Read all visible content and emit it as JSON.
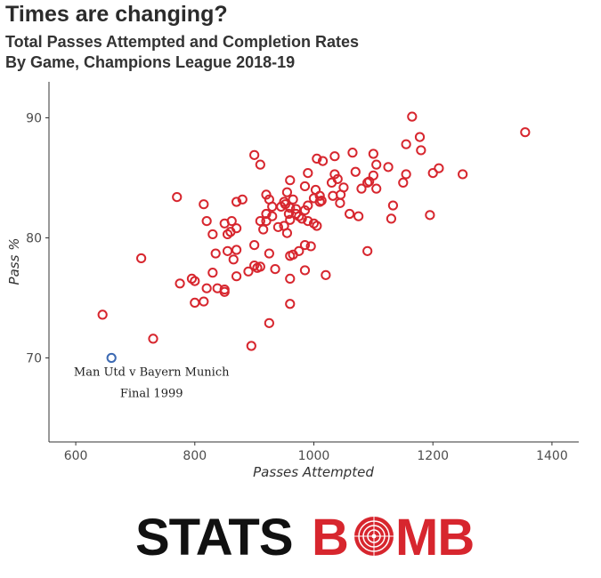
{
  "header": {
    "title": "Times are changing?",
    "subtitle_line1": "Total Passes Attempted and Completion Rates",
    "subtitle_line2": "By Game, Champions League 2018-19"
  },
  "colors": {
    "season_points": "#d7262e",
    "highlight_point": "#3d6ab3",
    "axis": "#333333",
    "text": "#333333"
  },
  "chart_data": {
    "type": "scatter",
    "xlabel": "Passes Attempted",
    "ylabel": "Pass %",
    "xlim": [
      555,
      1445
    ],
    "ylim": [
      63,
      93
    ],
    "xticks": [
      600,
      800,
      1000,
      1200,
      1400
    ],
    "yticks": [
      70,
      80,
      90
    ],
    "grid": false,
    "series": [
      {
        "points": [
          [
            1355,
            88.8
          ],
          [
            1165,
            90.1
          ],
          [
            1178,
            88.4
          ],
          [
            1180,
            87.3
          ],
          [
            1155,
            87.8
          ],
          [
            1125,
            85.9
          ],
          [
            1150,
            84.6
          ],
          [
            1155,
            85.3
          ],
          [
            1210,
            85.8
          ],
          [
            1200,
            85.4
          ],
          [
            1250,
            85.3
          ],
          [
            1195,
            81.9
          ],
          [
            1133,
            82.7
          ],
          [
            1130,
            81.6
          ],
          [
            1090,
            78.9
          ],
          [
            1100,
            85.2
          ],
          [
            1080,
            84.1
          ],
          [
            1090,
            84.6
          ],
          [
            1093,
            84.7
          ],
          [
            1070,
            85.5
          ],
          [
            1105,
            86.1
          ],
          [
            1100,
            87.0
          ],
          [
            1065,
            87.1
          ],
          [
            1060,
            82.0
          ],
          [
            1075,
            81.8
          ],
          [
            1105,
            84.1
          ],
          [
            1050,
            84.2
          ],
          [
            1040,
            84.9
          ],
          [
            1045,
            83.6
          ],
          [
            1030,
            84.6
          ],
          [
            1035,
            86.8
          ],
          [
            1015,
            86.4
          ],
          [
            1005,
            86.6
          ],
          [
            1003,
            84.0
          ],
          [
            1000,
            83.3
          ],
          [
            1010,
            83.0
          ],
          [
            1013,
            83.1
          ],
          [
            1010,
            83.5
          ],
          [
            990,
            85.4
          ],
          [
            1032,
            83.5
          ],
          [
            1035,
            85.3
          ],
          [
            1044,
            82.9
          ],
          [
            900,
            86.9
          ],
          [
            910,
            86.1
          ],
          [
            880,
            83.2
          ],
          [
            920,
            83.6
          ],
          [
            925,
            83.2
          ],
          [
            955,
            83.8
          ],
          [
            960,
            84.8
          ],
          [
            985,
            84.3
          ],
          [
            990,
            82.7
          ],
          [
            985,
            82.3
          ],
          [
            970,
            82.4
          ],
          [
            965,
            83.2
          ],
          [
            960,
            82.5
          ],
          [
            950,
            83.0
          ],
          [
            952,
            82.8
          ],
          [
            945,
            82.6
          ],
          [
            958,
            82.0
          ],
          [
            960,
            81.5
          ],
          [
            970,
            82.0
          ],
          [
            975,
            81.8
          ],
          [
            980,
            81.6
          ],
          [
            990,
            81.4
          ],
          [
            1000,
            81.2
          ],
          [
            1005,
            81.0
          ],
          [
            950,
            81.0
          ],
          [
            955,
            80.4
          ],
          [
            940,
            80.9
          ],
          [
            930,
            81.8
          ],
          [
            920,
            82.0
          ],
          [
            915,
            80.7
          ],
          [
            920,
            81.4
          ],
          [
            910,
            81.4
          ],
          [
            930,
            82.6
          ],
          [
            900,
            79.4
          ],
          [
            910,
            77.6
          ],
          [
            900,
            77.7
          ],
          [
            905,
            77.5
          ],
          [
            925,
            78.7
          ],
          [
            935,
            77.4
          ],
          [
            960,
            78.5
          ],
          [
            965,
            78.6
          ],
          [
            975,
            78.9
          ],
          [
            985,
            79.4
          ],
          [
            995,
            79.3
          ],
          [
            960,
            76.6
          ],
          [
            985,
            77.3
          ],
          [
            1020,
            76.9
          ],
          [
            960,
            74.5
          ],
          [
            925,
            72.9
          ],
          [
            895,
            71.0
          ],
          [
            870,
            83.0
          ],
          [
            862,
            81.4
          ],
          [
            860,
            80.5
          ],
          [
            855,
            80.3
          ],
          [
            870,
            80.8
          ],
          [
            865,
            78.2
          ],
          [
            870,
            79.0
          ],
          [
            855,
            78.9
          ],
          [
            835,
            78.7
          ],
          [
            830,
            80.3
          ],
          [
            820,
            81.4
          ],
          [
            815,
            82.8
          ],
          [
            770,
            83.4
          ],
          [
            850,
            81.2
          ],
          [
            890,
            77.2
          ],
          [
            870,
            76.8
          ],
          [
            850,
            75.7
          ],
          [
            850,
            75.5
          ],
          [
            838,
            75.8
          ],
          [
            830,
            77.1
          ],
          [
            820,
            75.8
          ],
          [
            815,
            74.7
          ],
          [
            800,
            74.6
          ],
          [
            800,
            76.4
          ],
          [
            795,
            76.6
          ],
          [
            775,
            76.2
          ],
          [
            710,
            78.3
          ],
          [
            730,
            71.6
          ],
          [
            645,
            73.6
          ]
        ]
      },
      {
        "points": [
          [
            660,
            70.0
          ]
        ]
      }
    ],
    "annotations": [
      {
        "text_line1": "Man Utd v Bayern Munich",
        "text_line2": "Final 1999",
        "x": 660,
        "y": 70.0
      }
    ]
  },
  "logo": {
    "text_left": "STATS",
    "text_right": "B",
    "text_tail": "MB"
  }
}
